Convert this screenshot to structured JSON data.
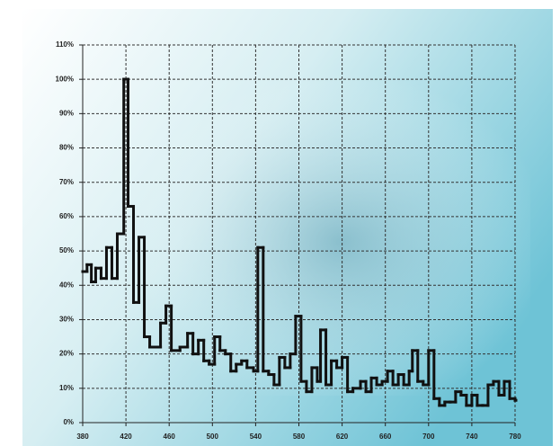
{
  "chart_data": {
    "type": "step",
    "x": [
      380,
      384,
      388,
      392,
      397,
      402,
      407,
      412,
      416,
      418,
      422,
      427,
      432,
      437,
      442,
      447,
      452,
      457,
      462,
      470,
      477,
      482,
      487,
      492,
      497,
      502,
      507,
      512,
      517,
      522,
      527,
      532,
      538,
      542,
      547,
      552,
      557,
      562,
      567,
      572,
      577,
      582,
      587,
      592,
      597,
      600,
      605,
      610,
      615,
      620,
      625,
      630,
      637,
      642,
      647,
      652,
      657,
      662,
      667,
      672,
      677,
      682,
      685,
      690,
      695,
      700,
      705,
      710,
      715,
      720,
      725,
      730,
      735,
      740,
      745,
      750,
      755,
      760,
      765,
      770,
      775,
      780
    ],
    "values": [
      44,
      46,
      41,
      45,
      42,
      51,
      42,
      55,
      55,
      100,
      63,
      35,
      54,
      25,
      22,
      22,
      29,
      34,
      21,
      22,
      26,
      20,
      24,
      18,
      17,
      25,
      21,
      20,
      15,
      17,
      18,
      16,
      15,
      51,
      15,
      14,
      11,
      19,
      16,
      20,
      31,
      12,
      9,
      16,
      12,
      27,
      11,
      18,
      16,
      19,
      9,
      10,
      12,
      9,
      13,
      11,
      12,
      15,
      11,
      14,
      11,
      15,
      21,
      12,
      11,
      21,
      7,
      5,
      6,
      6,
      9,
      8,
      5,
      8,
      5,
      5,
      11,
      12,
      8,
      12,
      7,
      6.5
    ],
    "color": "#111111",
    "xlim": [
      380,
      780
    ],
    "xticks": [
      380,
      420,
      460,
      500,
      540,
      580,
      620,
      660,
      700,
      740,
      780
    ],
    "ylim": [
      0,
      110
    ],
    "yticks": [
      {
        "value": 0,
        "label": "0%"
      },
      {
        "value": 10,
        "label": "10%"
      },
      {
        "value": 20,
        "label": "20%"
      },
      {
        "value": 30,
        "label": "30%"
      },
      {
        "value": 40,
        "label": "40%"
      },
      {
        "value": 50,
        "label": "50%"
      },
      {
        "value": 60,
        "label": "60%"
      },
      {
        "value": 70,
        "label": "70%"
      },
      {
        "value": 80,
        "label": "80%"
      },
      {
        "value": 90,
        "label": "90%"
      },
      {
        "value": 100,
        "label": "100%"
      },
      {
        "value": 110,
        "label": "110%"
      }
    ],
    "grid": true
  }
}
